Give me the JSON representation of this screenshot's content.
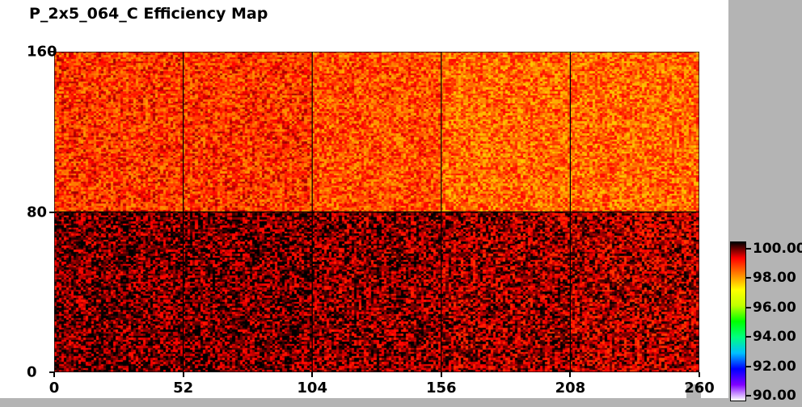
{
  "title": "P_2x5_064_C Efficiency Map",
  "chart_data": {
    "type": "heatmap",
    "title": "P_2x5_064_C Efficiency Map",
    "xlim": [
      0,
      260
    ],
    "ylim": [
      0,
      160
    ],
    "x_ticks": [
      "0",
      "52",
      "104",
      "156",
      "208",
      "260"
    ],
    "y_ticks": [
      "0",
      "80",
      "160"
    ],
    "grid": true,
    "modules": {
      "columns": 5,
      "rows": 2,
      "upper_row_mean_efficiency": [
        98.6,
        98.6,
        98.4,
        98.2,
        98.2
      ],
      "lower_row_mean_efficiency": [
        99.6,
        99.6,
        99.5,
        99.4,
        99.3
      ]
    },
    "colorbar": {
      "min": 90,
      "max": 100,
      "ticks": [
        "100.00",
        "98.00",
        "96.00",
        "94.00",
        "92.00",
        "90.00"
      ],
      "colors": [
        "#ffffff",
        "#8000ff",
        "#0000ff",
        "#00c0ff",
        "#00ff80",
        "#00ff00",
        "#c0ff00",
        "#ffff00",
        "#ff8000",
        "#ff0000",
        "#000000"
      ]
    }
  },
  "colors": {
    "panel": "#b4b4b4",
    "grid": "#000000"
  }
}
